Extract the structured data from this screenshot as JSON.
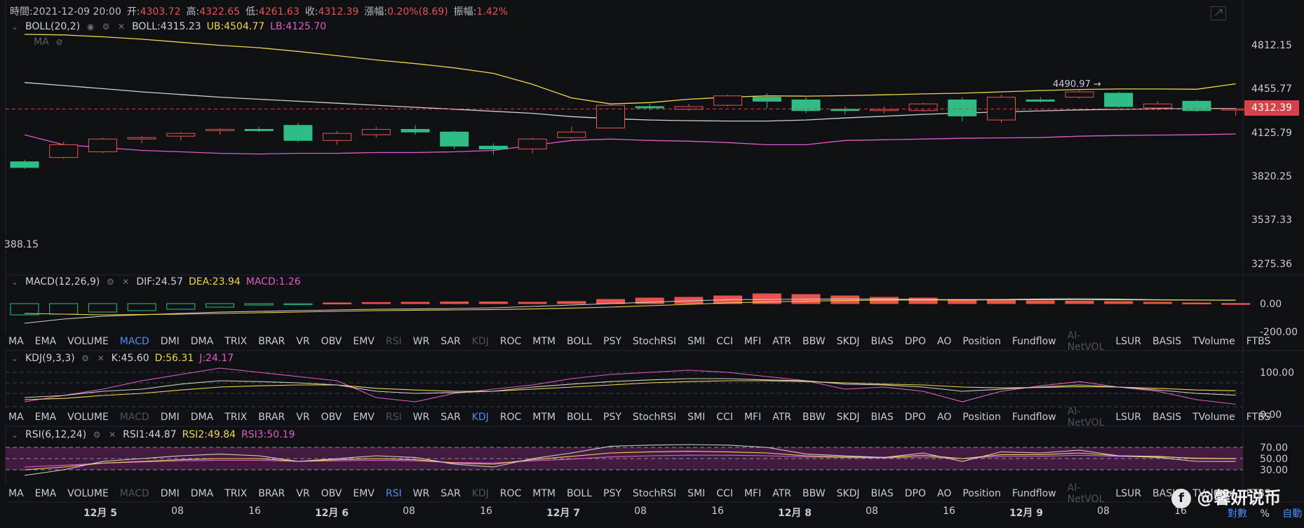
{
  "header": {
    "time_label": "時間:2021-12-09 20:00",
    "open_label": "开:",
    "open": "4303.72",
    "high_label": "高:",
    "high": "4322.65",
    "low_label": "低:",
    "low": "4261.63",
    "close_label": "收:",
    "close": "4312.39",
    "change_label": "漲幅:",
    "change": "0.20%(8.69)",
    "amp_label": "振幅:",
    "amp": "1.42%"
  },
  "boll": {
    "name": "BOLL(20,2)",
    "mid": "BOLL:4315.23",
    "ub": "UB:4504.77",
    "lb": "LB:4125.70",
    "ma": "MA"
  },
  "macd": {
    "name": "MACD(12,26,9)",
    "dif": "DIF:24.57",
    "dea": "DEA:23.94",
    "macd": "MACD:1.26"
  },
  "kdj": {
    "name": "KDJ(9,3,3)",
    "k": "K:45.60",
    "d": "D:56.31",
    "j": "J:24.17"
  },
  "rsi": {
    "name": "RSI(6,12,24)",
    "r1": "RSI1:44.87",
    "r2": "RSI2:49.84",
    "r3": "RSI3:50.19"
  },
  "price_axis": [
    "4812.15",
    "4455.77",
    "4125.79",
    "3820.25",
    "3537.33",
    "3275.36"
  ],
  "current_price": "4312.39",
  "high_marker": "4490.97 →",
  "low_marker": "388.15",
  "macd_axis": [
    "0.00",
    "-200.00"
  ],
  "kdj_axis": [
    "100.00",
    "0.00"
  ],
  "rsi_axis": [
    "70.00",
    "50.00",
    "30.00"
  ],
  "indicators": [
    "MA",
    "EMA",
    "VOLUME",
    "MACD",
    "DMI",
    "DMA",
    "TRIX",
    "BRAR",
    "VR",
    "OBV",
    "EMV",
    "RSI",
    "WR",
    "SAR",
    "KDJ",
    "ROC",
    "MTM",
    "BOLL",
    "PSY",
    "StochRSI",
    "SMI",
    "CCI",
    "MFI",
    "ATR",
    "BBW",
    "SKDJ",
    "BIAS",
    "DPO",
    "AO",
    "Position",
    "Fundflow",
    "AI-NetVOL",
    "LSUR",
    "BASIS",
    "TVolume",
    "FTBS"
  ],
  "indicator_bars": [
    {
      "active": "MACD",
      "dim": [
        "RSI",
        "KDJ",
        "AI-NetVOL"
      ]
    },
    {
      "active": "KDJ",
      "dim": [
        "MACD",
        "RSI",
        "AI-NetVOL"
      ]
    },
    {
      "active": "RSI",
      "dim": [
        "MACD",
        "KDJ",
        "AI-NetVOL"
      ]
    }
  ],
  "time_axis": [
    {
      "label": "12月 5",
      "bold": true
    },
    {
      "label": "08"
    },
    {
      "label": "16"
    },
    {
      "label": "12月 6",
      "bold": true
    },
    {
      "label": "08"
    },
    {
      "label": "16"
    },
    {
      "label": "12月 7",
      "bold": true
    },
    {
      "label": "08"
    },
    {
      "label": "16"
    },
    {
      "label": "12月 8",
      "bold": true
    },
    {
      "label": "08"
    },
    {
      "label": "16"
    },
    {
      "label": "12月 9",
      "bold": true
    },
    {
      "label": "08"
    },
    {
      "label": "16"
    }
  ],
  "footer": {
    "log": "對數",
    "pct": "%",
    "auto": "自動"
  },
  "watermark": "@馨妍说币",
  "colors": {
    "up": "#e8524f",
    "down": "#2ebd85",
    "mid": "#d0d0d0",
    "ub": "#f1d54a",
    "lb": "#e35bc8"
  },
  "chart_data": {
    "type": "candlestick",
    "candles_ohlc": [
      [
        3930,
        3945,
        3880,
        3890
      ],
      [
        3960,
        4070,
        3950,
        4050
      ],
      [
        4000,
        4100,
        3990,
        4090
      ],
      [
        4090,
        4110,
        4060,
        4100
      ],
      [
        4110,
        4140,
        4080,
        4130
      ],
      [
        4150,
        4170,
        4120,
        4160
      ],
      [
        4160,
        4180,
        4140,
        4150
      ],
      [
        4190,
        4210,
        4070,
        4080
      ],
      [
        4080,
        4150,
        4050,
        4130
      ],
      [
        4120,
        4180,
        4100,
        4160
      ],
      [
        4160,
        4190,
        4120,
        4140
      ],
      [
        4140,
        4150,
        4020,
        4040
      ],
      [
        4040,
        4060,
        3980,
        4020
      ],
      [
        4020,
        4100,
        3990,
        4090
      ],
      [
        4100,
        4180,
        4090,
        4140
      ],
      [
        4170,
        4350,
        4170,
        4340
      ],
      [
        4330,
        4350,
        4300,
        4320
      ],
      [
        4310,
        4350,
        4300,
        4330
      ],
      [
        4340,
        4420,
        4330,
        4410
      ],
      [
        4400,
        4430,
        4320,
        4370
      ],
      [
        4380,
        4400,
        4280,
        4300
      ],
      [
        4310,
        4330,
        4270,
        4300
      ],
      [
        4300,
        4330,
        4280,
        4310
      ],
      [
        4300,
        4360,
        4290,
        4350
      ],
      [
        4380,
        4400,
        4220,
        4260
      ],
      [
        4230,
        4420,
        4210,
        4400
      ],
      [
        4380,
        4400,
        4360,
        4370
      ],
      [
        4400,
        4450,
        4390,
        4440
      ],
      [
        4430,
        4440,
        4320,
        4330
      ],
      [
        4320,
        4370,
        4300,
        4350
      ],
      [
        4370,
        4380,
        4290,
        4300
      ],
      [
        4303.72,
        4322.65,
        4261.63,
        4312.39
      ]
    ],
    "boll_mid": [
      4515,
      4490,
      4465,
      4440,
      4420,
      4400,
      4385,
      4370,
      4355,
      4340,
      4325,
      4310,
      4295,
      4280,
      4255,
      4240,
      4230,
      4225,
      4222,
      4222,
      4230,
      4245,
      4258,
      4272,
      4282,
      4290,
      4298,
      4305,
      4310,
      4313,
      4315,
      4315.23
    ],
    "boll_ub": [
      4910,
      4905,
      4890,
      4870,
      4845,
      4820,
      4800,
      4770,
      4735,
      4700,
      4670,
      4635,
      4590,
      4500,
      4395,
      4350,
      4360,
      4385,
      4400,
      4410,
      4408,
      4412,
      4418,
      4425,
      4430,
      4440,
      4450,
      4458,
      4462,
      4462,
      4460,
      4504.77
    ],
    "boll_lb": [
      4120,
      4050,
      4030,
      4010,
      4000,
      3990,
      3985,
      3990,
      3990,
      3995,
      3995,
      4000,
      4010,
      4045,
      4080,
      4090,
      4080,
      4075,
      4065,
      4050,
      4050,
      4080,
      4085,
      4090,
      4095,
      4098,
      4100,
      4110,
      4115,
      4118,
      4120,
      4125.7
    ],
    "macd_hist": [
      -80,
      -75,
      -60,
      -50,
      -40,
      -25,
      -10,
      -5,
      5,
      8,
      10,
      12,
      12,
      10,
      15,
      30,
      40,
      45,
      55,
      70,
      65,
      55,
      45,
      40,
      30,
      25,
      20,
      18,
      15,
      10,
      5,
      1.26
    ],
    "macd_dif": [
      -140,
      -110,
      -90,
      -80,
      -70,
      -60,
      -55,
      -50,
      -45,
      -40,
      -38,
      -35,
      -30,
      -20,
      -10,
      0,
      10,
      20,
      28,
      30,
      32,
      33,
      32,
      30,
      28,
      30,
      33,
      35,
      32,
      28,
      26,
      24.57
    ],
    "macd_dea": [
      -70,
      -75,
      -80,
      -78,
      -75,
      -70,
      -65,
      -60,
      -55,
      -50,
      -47,
      -45,
      -42,
      -38,
      -32,
      -25,
      -15,
      -5,
      5,
      12,
      18,
      22,
      25,
      26,
      26,
      27,
      28,
      28,
      27,
      26,
      25,
      23.94
    ],
    "kdj_k": [
      40,
      45,
      55,
      60,
      72,
      80,
      78,
      75,
      70,
      55,
      50,
      52,
      55,
      65,
      72,
      78,
      82,
      85,
      85,
      82,
      80,
      72,
      70,
      65,
      55,
      60,
      65,
      70,
      65,
      58,
      50,
      45.6
    ],
    "kdj_d": [
      35,
      38,
      45,
      50,
      58,
      65,
      68,
      70,
      70,
      62,
      58,
      55,
      55,
      60,
      65,
      70,
      75,
      78,
      80,
      80,
      78,
      75,
      72,
      70,
      65,
      63,
      64,
      66,
      65,
      62,
      58,
      56.31
    ],
    "kdj_j": [
      30,
      45,
      60,
      80,
      95,
      110,
      100,
      90,
      80,
      40,
      30,
      50,
      60,
      70,
      85,
      95,
      100,
      105,
      100,
      90,
      80,
      60,
      65,
      55,
      30,
      55,
      68,
      78,
      65,
      55,
      35,
      24.17
    ],
    "rsi1": [
      20,
      30,
      45,
      50,
      55,
      58,
      55,
      45,
      50,
      55,
      52,
      40,
      35,
      50,
      60,
      72,
      74,
      75,
      74,
      70,
      58,
      55,
      52,
      60,
      45,
      62,
      60,
      65,
      55,
      52,
      45,
      44.87
    ],
    "rsi2": [
      30,
      35,
      42,
      45,
      48,
      50,
      50,
      45,
      48,
      50,
      48,
      42,
      40,
      48,
      54,
      60,
      62,
      63,
      62,
      60,
      55,
      53,
      52,
      56,
      50,
      57,
      57,
      60,
      55,
      54,
      50,
      49.84
    ],
    "rsi3": [
      35,
      38,
      42,
      44,
      46,
      47,
      47,
      45,
      46,
      47,
      46,
      43,
      42,
      46,
      49,
      53,
      55,
      56,
      56,
      55,
      53,
      52,
      51,
      53,
      50,
      54,
      54,
      56,
      54,
      53,
      51,
      50.19
    ]
  }
}
